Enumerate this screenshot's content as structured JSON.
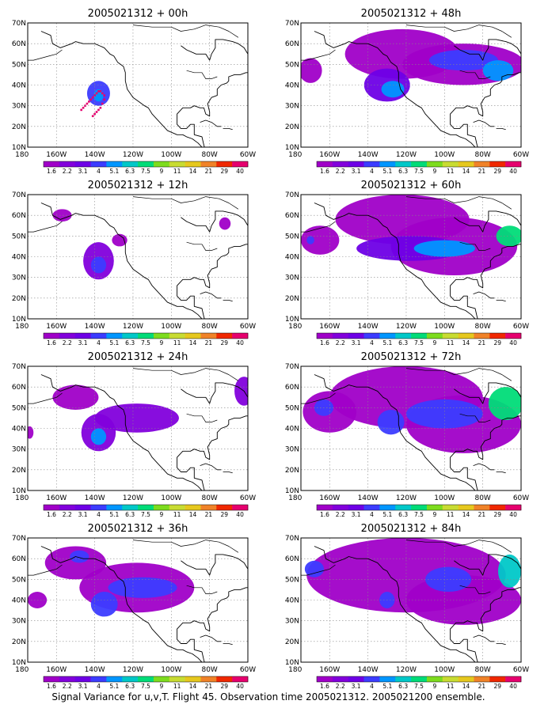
{
  "chart_data": {
    "type": "heatmap",
    "caption": "Signal Variance for u,v,T. Flight 45. Observation time 2005021312. 2005021200 ensemble.",
    "x_ticks": [
      "180",
      "160W",
      "140W",
      "120W",
      "100W",
      "80W",
      "60W"
    ],
    "y_ticks": [
      "10N",
      "20N",
      "30N",
      "40N",
      "50N",
      "60N",
      "70N"
    ],
    "x_range_lon": [
      -175,
      -60
    ],
    "y_range_lat": [
      10,
      70
    ],
    "grid": true,
    "colorbar": {
      "labels": [
        "1.6",
        "2.2",
        "3.1",
        "4",
        "5.1",
        "6.3",
        "7.5",
        "9",
        "11",
        "14",
        "21",
        "29",
        "40"
      ],
      "colors": [
        "#a000c8",
        "#8200dc",
        "#6e00e6",
        "#3c3cff",
        "#0096ff",
        "#00c8c8",
        "#00dc78",
        "#7ddc1e",
        "#c8dc32",
        "#e6c81e",
        "#f08228",
        "#f02800",
        "#e6006e"
      ]
    },
    "panels": [
      {
        "title": "2005021312 + 00h",
        "blobs": [
          {
            "lon": -138,
            "lat": 36,
            "rx": 6,
            "ry": 6,
            "level": 3
          },
          {
            "lon": -138,
            "lat": 35,
            "rx": 2.5,
            "ry": 3,
            "level": 4
          }
        ],
        "markers": [
          [
            -147,
            28
          ],
          [
            -146,
            29
          ],
          [
            -145,
            30
          ],
          [
            -144,
            31
          ],
          [
            -143,
            32
          ],
          [
            -142,
            33
          ],
          [
            -141,
            34
          ],
          [
            -140,
            35
          ],
          [
            -139,
            36
          ],
          [
            -138,
            37
          ],
          [
            -137,
            37
          ],
          [
            -136,
            36
          ],
          [
            -135,
            35
          ],
          [
            -135,
            33
          ],
          [
            -136,
            31
          ],
          [
            -137,
            29
          ],
          [
            -138,
            28
          ],
          [
            -139,
            27
          ],
          [
            -140,
            26
          ],
          [
            -141,
            25
          ]
        ]
      },
      {
        "title": "2005021312 + 48h",
        "blobs": [
          {
            "lon": -122,
            "lat": 55,
            "rx": 30,
            "ry": 12,
            "level": 0
          },
          {
            "lon": -90,
            "lat": 50,
            "rx": 32,
            "ry": 10,
            "level": 0
          },
          {
            "lon": -170,
            "lat": 47,
            "rx": 6,
            "ry": 6,
            "level": 0
          },
          {
            "lon": -130,
            "lat": 40,
            "rx": 12,
            "ry": 8,
            "level": 2
          },
          {
            "lon": -127,
            "lat": 38,
            "rx": 6,
            "ry": 4,
            "level": 4
          },
          {
            "lon": -90,
            "lat": 52,
            "rx": 18,
            "ry": 5,
            "level": 3
          },
          {
            "lon": -72,
            "lat": 47,
            "rx": 8,
            "ry": 5,
            "level": 4
          }
        ],
        "markers": []
      },
      {
        "title": "2005021312 + 12h",
        "blobs": [
          {
            "lon": -157,
            "lat": 60,
            "rx": 5,
            "ry": 3,
            "level": 0
          },
          {
            "lon": -72,
            "lat": 56,
            "rx": 3,
            "ry": 3,
            "level": 0
          },
          {
            "lon": -138,
            "lat": 38,
            "rx": 8,
            "ry": 9,
            "level": 1
          },
          {
            "lon": -127,
            "lat": 48,
            "rx": 4,
            "ry": 3,
            "level": 0
          },
          {
            "lon": -138,
            "lat": 36,
            "rx": 4,
            "ry": 4,
            "level": 3
          }
        ],
        "markers": []
      },
      {
        "title": "2005021312 + 60h",
        "blobs": [
          {
            "lon": -122,
            "lat": 58,
            "rx": 35,
            "ry": 12,
            "level": 0
          },
          {
            "lon": -95,
            "lat": 45,
            "rx": 33,
            "ry": 14,
            "level": 0
          },
          {
            "lon": -165,
            "lat": 48,
            "rx": 10,
            "ry": 7,
            "level": 0
          },
          {
            "lon": -118,
            "lat": 44,
            "rx": 28,
            "ry": 6,
            "level": 2
          },
          {
            "lon": -100,
            "lat": 44,
            "rx": 16,
            "ry": 4,
            "level": 4
          },
          {
            "lon": -66,
            "lat": 50,
            "rx": 7,
            "ry": 5,
            "level": 6
          },
          {
            "lon": -170,
            "lat": 48,
            "rx": 2,
            "ry": 2,
            "level": 3
          }
        ],
        "markers": []
      },
      {
        "title": "2005021312 + 24h",
        "blobs": [
          {
            "lon": -150,
            "lat": 55,
            "rx": 12,
            "ry": 6,
            "level": 0
          },
          {
            "lon": -138,
            "lat": 38,
            "rx": 9,
            "ry": 9,
            "level": 1
          },
          {
            "lon": -118,
            "lat": 45,
            "rx": 22,
            "ry": 7,
            "level": 1
          },
          {
            "lon": -138,
            "lat": 36,
            "rx": 4,
            "ry": 4,
            "level": 4
          },
          {
            "lon": -174,
            "lat": 38,
            "rx": 2,
            "ry": 3,
            "level": 0
          },
          {
            "lon": -62,
            "lat": 58,
            "rx": 5,
            "ry": 7,
            "level": 1
          }
        ],
        "markers": []
      },
      {
        "title": "2005021312 + 72h",
        "blobs": [
          {
            "lon": -120,
            "lat": 55,
            "rx": 40,
            "ry": 15,
            "level": 0
          },
          {
            "lon": -90,
            "lat": 42,
            "rx": 30,
            "ry": 14,
            "level": 0
          },
          {
            "lon": -160,
            "lat": 48,
            "rx": 14,
            "ry": 10,
            "level": 0
          },
          {
            "lon": -163,
            "lat": 50,
            "rx": 5,
            "ry": 4,
            "level": 3
          },
          {
            "lon": -128,
            "lat": 43,
            "rx": 7,
            "ry": 6,
            "level": 3
          },
          {
            "lon": -100,
            "lat": 47,
            "rx": 20,
            "ry": 7,
            "level": 3
          },
          {
            "lon": -68,
            "lat": 52,
            "rx": 9,
            "ry": 8,
            "level": 6
          }
        ],
        "markers": []
      },
      {
        "title": "2005021312 + 36h",
        "blobs": [
          {
            "lon": -150,
            "lat": 58,
            "rx": 16,
            "ry": 8,
            "level": 0
          },
          {
            "lon": -118,
            "lat": 46,
            "rx": 30,
            "ry": 12,
            "level": 0
          },
          {
            "lon": -170,
            "lat": 40,
            "rx": 5,
            "ry": 4,
            "level": 0
          },
          {
            "lon": -148,
            "lat": 61,
            "rx": 5,
            "ry": 3,
            "level": 3
          },
          {
            "lon": -135,
            "lat": 38,
            "rx": 7,
            "ry": 6,
            "level": 3
          },
          {
            "lon": -115,
            "lat": 46,
            "rx": 18,
            "ry": 5,
            "level": 3
          }
        ],
        "markers": []
      },
      {
        "title": "2005021312 + 84h",
        "blobs": [
          {
            "lon": -120,
            "lat": 52,
            "rx": 52,
            "ry": 18,
            "level": 0
          },
          {
            "lon": -90,
            "lat": 40,
            "rx": 30,
            "ry": 12,
            "level": 0
          },
          {
            "lon": -168,
            "lat": 55,
            "rx": 5,
            "ry": 4,
            "level": 3
          },
          {
            "lon": -130,
            "lat": 40,
            "rx": 4,
            "ry": 4,
            "level": 3
          },
          {
            "lon": -98,
            "lat": 50,
            "rx": 12,
            "ry": 6,
            "level": 3
          },
          {
            "lon": -66,
            "lat": 54,
            "rx": 6,
            "ry": 8,
            "level": 5
          }
        ],
        "markers": []
      }
    ]
  }
}
